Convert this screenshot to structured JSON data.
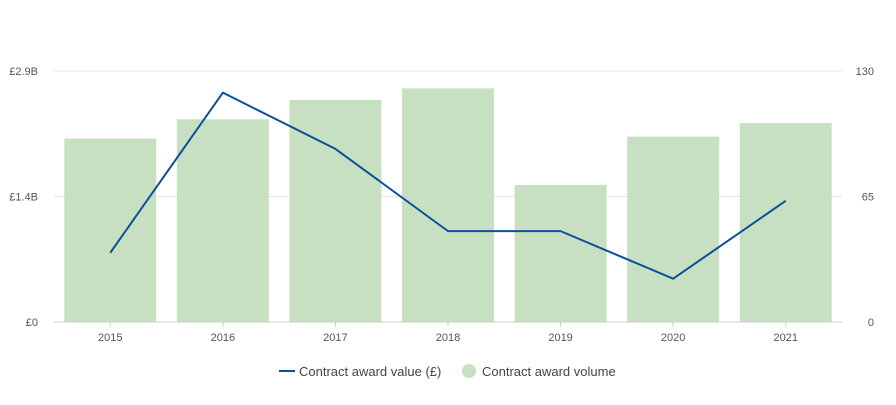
{
  "chart_data": {
    "type": "bar",
    "categories": [
      "2015",
      "2016",
      "2017",
      "2018",
      "2019",
      "2020",
      "2021"
    ],
    "series": [
      {
        "name": "Contract award volume",
        "kind": "bar",
        "axis": "right",
        "color": "#c8e0c2",
        "values": [
          95,
          105,
          115,
          121,
          71,
          96,
          103
        ]
      },
      {
        "name": "Contract award value (£)",
        "kind": "line",
        "axis": "left",
        "color": "#0c4f9a",
        "values": [
          0.8,
          2.65,
          2.0,
          1.05,
          1.05,
          0.5,
          1.4
        ]
      }
    ],
    "y_left": {
      "ylim": [
        0,
        2.9
      ],
      "ticks": [
        {
          "value": 0,
          "label": "£0"
        },
        {
          "value": 1.45,
          "label": "£1.4B"
        },
        {
          "value": 2.9,
          "label": "£2.9B"
        }
      ]
    },
    "y_right": {
      "ylim": [
        0,
        130
      ],
      "ticks": [
        {
          "value": 0,
          "label": "0"
        },
        {
          "value": 65,
          "label": "65"
        },
        {
          "value": 130,
          "label": "130"
        }
      ]
    },
    "grid": true,
    "legend_placement": "bottom-center",
    "legend": [
      {
        "label": "Contract award value (£)",
        "symbol": "line",
        "color": "#0c4f9a"
      },
      {
        "label": "Contract award volume",
        "symbol": "circle",
        "color": "#c8e0c2"
      }
    ]
  }
}
